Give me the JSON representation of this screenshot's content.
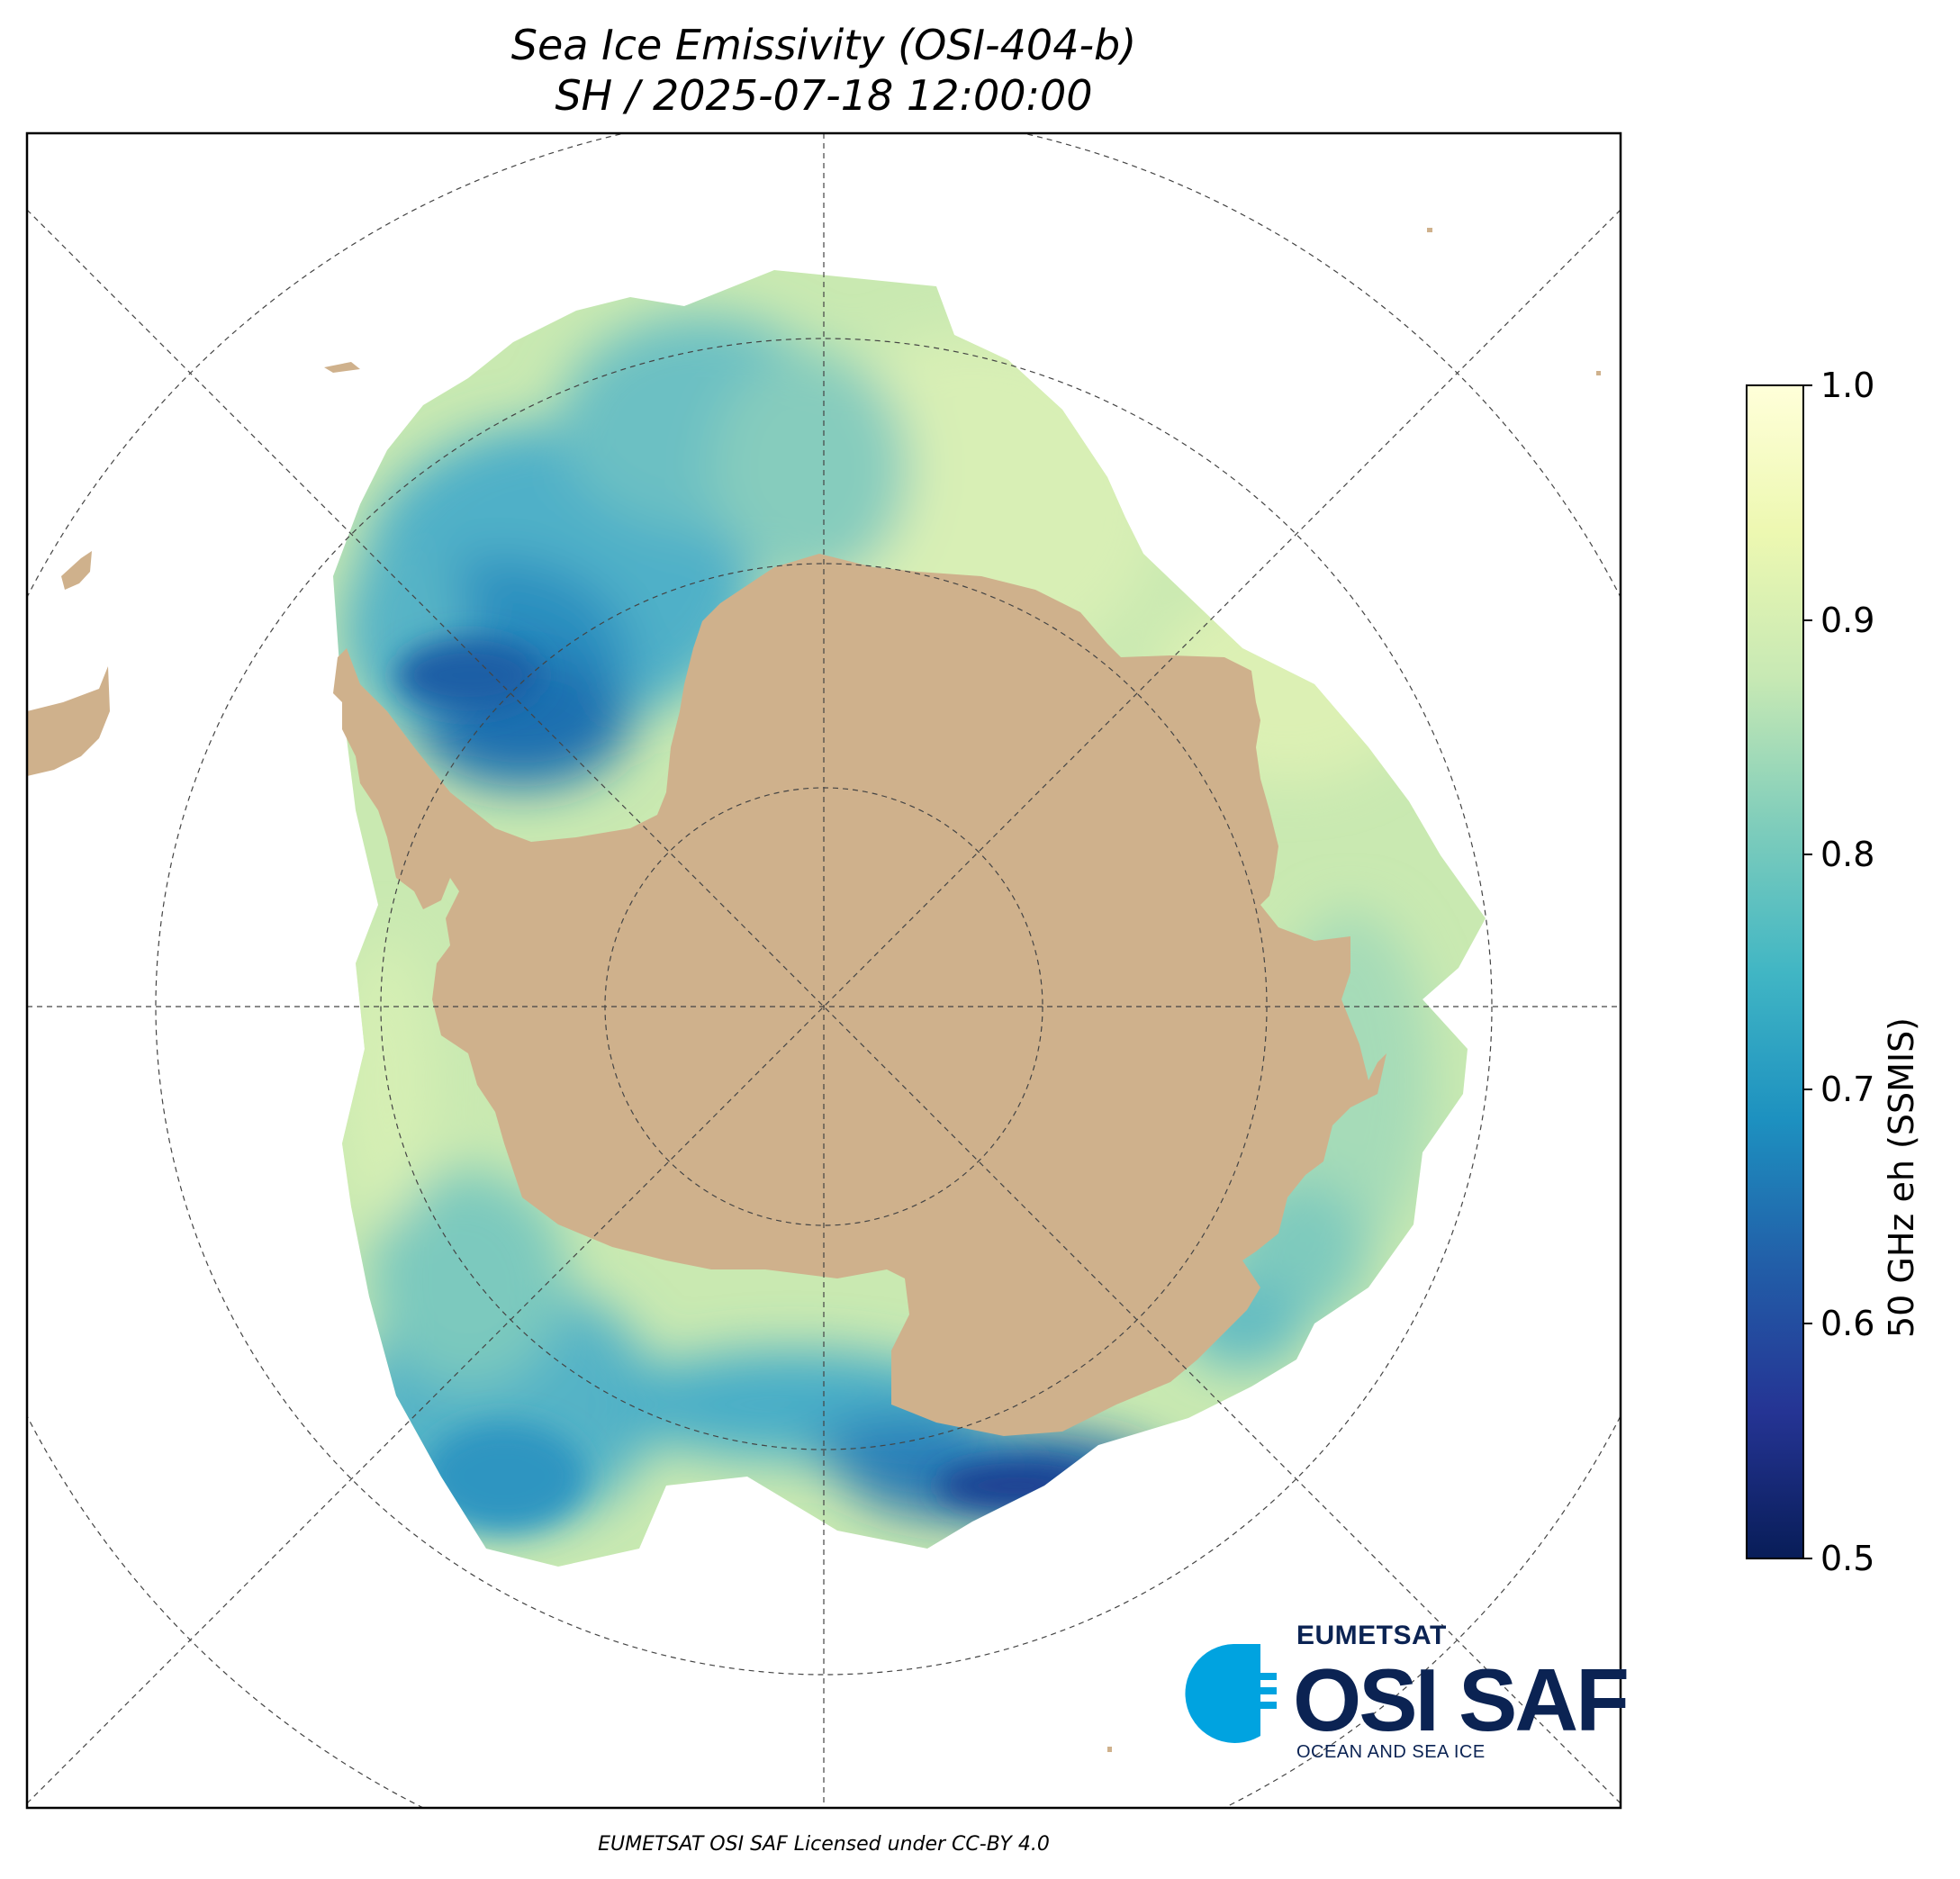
{
  "title": {
    "line1": "Sea Ice Emissivity (OSI-404-b)",
    "line2": "SH / 2025-07-18 12:00:00"
  },
  "colorbar": {
    "label": "50 GHz eh (SSMIS)",
    "range": [
      0.5,
      1.0
    ],
    "ticks": [
      "1.0",
      "0.9",
      "0.8",
      "0.7",
      "0.6",
      "0.5"
    ],
    "colors": [
      "#081d58",
      "#253494",
      "#225ea8",
      "#1d91c0",
      "#41b6c4",
      "#7fcdbb",
      "#c7e9b4",
      "#edf8b1",
      "#ffffd9"
    ]
  },
  "map": {
    "projection": "south polar stereographic",
    "land_color": "#cfb18c",
    "background_color": "#ffffff",
    "gridlines": "dashed"
  },
  "logo": {
    "org": "EUMETSAT",
    "name": "OSI SAF",
    "tagline": "OCEAN AND SEA ICE",
    "color_primary": "#0b2353",
    "color_accent": "#00a3e0"
  },
  "footer": "EUMETSAT OSI SAF Licensed under CC-BY 4.0"
}
